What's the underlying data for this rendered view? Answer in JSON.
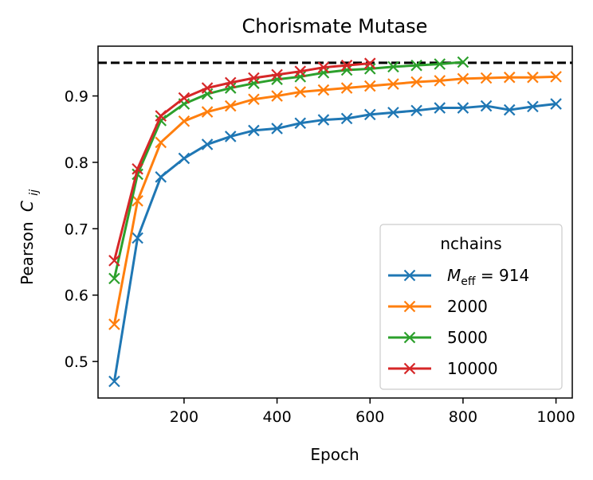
{
  "chart_data": {
    "type": "line",
    "title": "Chorismate Mutase",
    "xlabel": "Epoch",
    "ylabel": "Pearson",
    "ylabel_symbol": "C",
    "ylabel_subscript": "ij",
    "xlim": [
      15,
      1035
    ],
    "ylim": [
      0.445,
      0.975
    ],
    "xticks": [
      200,
      400,
      600,
      800,
      1000
    ],
    "yticks": [
      0.5,
      0.6,
      0.7,
      0.8,
      0.9
    ],
    "reference_line": {
      "y": 0.95,
      "style": "dashed",
      "color": "#000000"
    },
    "grid": false,
    "marker": "x",
    "legend": {
      "title": "nchains",
      "placement": "lower right",
      "first_entry": {
        "symbol": "M",
        "subscript": "eff",
        "suffix": " = 914"
      }
    },
    "series": [
      {
        "name": "914",
        "color": "#1f77b4",
        "x": [
          50,
          100,
          150,
          200,
          250,
          300,
          350,
          400,
          450,
          500,
          550,
          600,
          650,
          700,
          750,
          800,
          850,
          900,
          950,
          1000
        ],
        "values": [
          0.47,
          0.686,
          0.778,
          0.806,
          0.827,
          0.839,
          0.848,
          0.851,
          0.859,
          0.864,
          0.866,
          0.872,
          0.875,
          0.878,
          0.882,
          0.882,
          0.885,
          0.879,
          0.884,
          0.888
        ]
      },
      {
        "name": "2000",
        "color": "#ff7f0e",
        "x": [
          50,
          100,
          150,
          200,
          250,
          300,
          350,
          400,
          450,
          500,
          550,
          600,
          650,
          700,
          750,
          800,
          850,
          900,
          950,
          1000
        ],
        "values": [
          0.556,
          0.742,
          0.83,
          0.862,
          0.876,
          0.885,
          0.895,
          0.9,
          0.906,
          0.909,
          0.912,
          0.915,
          0.918,
          0.921,
          0.923,
          0.926,
          0.927,
          0.928,
          0.928,
          0.929
        ]
      },
      {
        "name": "5000",
        "color": "#2ca02c",
        "x": [
          50,
          100,
          150,
          200,
          250,
          300,
          350,
          400,
          450,
          500,
          550,
          600,
          650,
          700,
          750,
          800
        ],
        "values": [
          0.625,
          0.782,
          0.863,
          0.888,
          0.903,
          0.912,
          0.919,
          0.925,
          0.929,
          0.935,
          0.939,
          0.941,
          0.944,
          0.946,
          0.948,
          0.951
        ]
      },
      {
        "name": "10000",
        "color": "#d62728",
        "x": [
          50,
          100,
          150,
          200,
          250,
          300,
          350,
          400,
          450,
          500,
          550,
          600
        ],
        "values": [
          0.652,
          0.79,
          0.87,
          0.897,
          0.912,
          0.92,
          0.927,
          0.932,
          0.937,
          0.943,
          0.946,
          0.949
        ]
      }
    ]
  }
}
